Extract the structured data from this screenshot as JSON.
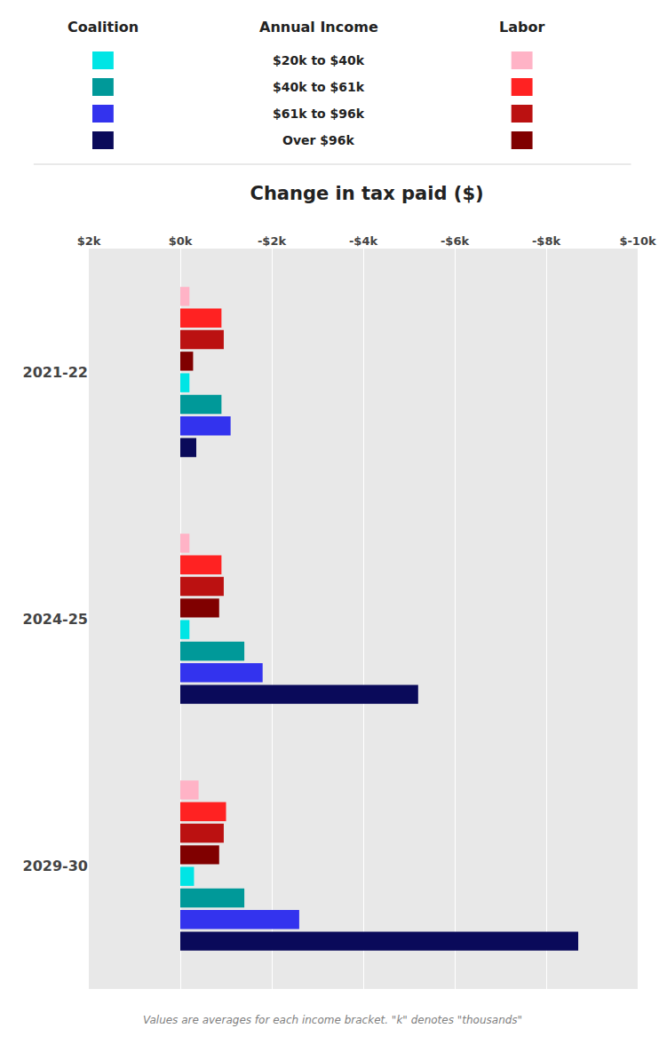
{
  "chart_data": {
    "type": "bar",
    "orientation": "horizontal",
    "title": "Change in tax paid ($)",
    "footnote": "Values are averages for each income bracket. \"k\" denotes \"thousands\"",
    "legend_title": "Annual Income",
    "categories": [
      "2021-22",
      "2024-25",
      "2029-30"
    ],
    "groups": [
      {
        "name": "Coalition",
        "series": [
          {
            "name": "$20k to $40k",
            "color": "#00E5E5",
            "values": [
              -200,
              -200,
              -300
            ]
          },
          {
            "name": "$40k to $61k",
            "color": "#009999",
            "values": [
              -900,
              -1400,
              -1400
            ]
          },
          {
            "name": "$61k to $96k",
            "color": "#3333EE",
            "values": [
              -1100,
              -1800,
              -2600
            ]
          },
          {
            "name": "Over $96k",
            "color": "#0A0A5A",
            "values": [
              -350,
              -5200,
              -8700
            ]
          }
        ]
      },
      {
        "name": "Labor",
        "series": [
          {
            "name": "$20k to $40k",
            "color": "#FFB3C6",
            "values": [
              -200,
              -200,
              -400
            ]
          },
          {
            "name": "$40k to $61k",
            "color": "#FF2222",
            "values": [
              -900,
              -900,
              -1000
            ]
          },
          {
            "name": "$61k to $96k",
            "color": "#BB1111",
            "values": [
              -950,
              -950,
              -950
            ]
          },
          {
            "name": "Over $96k",
            "color": "#800000",
            "values": [
              -280,
              -850,
              -850
            ]
          }
        ]
      }
    ],
    "xlim": [
      2000,
      -10000
    ],
    "xticks": [
      {
        "value": 2000,
        "label": "$2k"
      },
      {
        "value": 0,
        "label": "$0k"
      },
      {
        "value": -2000,
        "label": "-$2k"
      },
      {
        "value": -4000,
        "label": "-$4k"
      },
      {
        "value": -6000,
        "label": "-$6k"
      },
      {
        "value": -8000,
        "label": "-$8k"
      },
      {
        "value": -10000,
        "label": "$-10k"
      }
    ],
    "grid": true,
    "background_color": "#E8E8E8"
  }
}
